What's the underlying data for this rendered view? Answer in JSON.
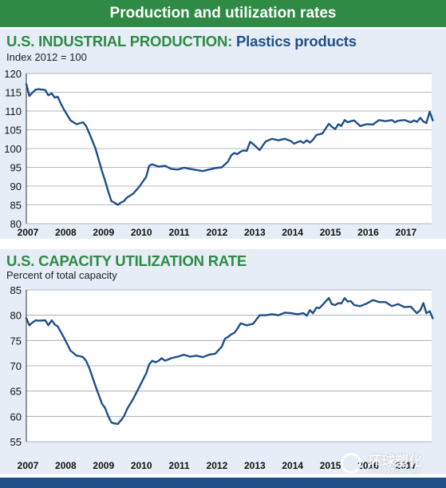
{
  "banner": {
    "title": "Production and utilization rates"
  },
  "charts": {
    "production": {
      "title_lead": "U.S. INDUSTRIAL PRODUCTION:",
      "title_tail": "Plastics products",
      "subtitle": "Index 2012 = 100"
    },
    "utilization": {
      "title": "U.S. CAPACITY UTILIZATION RATE",
      "subtitle": "Percent of total capacity"
    }
  },
  "watermark": {
    "name": "环球塑化",
    "url": "PVC123.COM"
  },
  "colors": {
    "banner": "#2e8a45",
    "title_blue": "#1f4f88",
    "line": "#1f4f88",
    "panel": "#e6edf6"
  },
  "chart_data": [
    {
      "type": "line",
      "title": "U.S. INDUSTRIAL PRODUCTION: Plastics products",
      "ylabel": "Index 2012 = 100",
      "ylim": [
        80,
        120
      ],
      "yticks": [
        80,
        85,
        90,
        95,
        100,
        105,
        110,
        115,
        120
      ],
      "xticks": [
        "2007",
        "2008",
        "2009",
        "2010",
        "2011",
        "2012",
        "2013",
        "2014",
        "2015",
        "2016",
        "2017"
      ],
      "grid": true,
      "series": [
        {
          "x": [
            2007.0,
            2007.08,
            2007.17,
            2007.25,
            2007.33,
            2007.5,
            2007.58,
            2007.67,
            2007.75,
            2007.83,
            2007.92,
            2008.0,
            2008.17,
            2008.33,
            2008.5,
            2008.58,
            2008.67,
            2008.83,
            2009.0,
            2009.08,
            2009.17,
            2009.25,
            2009.33,
            2009.42,
            2009.5,
            2009.58,
            2009.67,
            2009.83,
            2010.0,
            2010.17,
            2010.25,
            2010.33,
            2010.5,
            2010.67,
            2010.83,
            2011.0,
            2011.17,
            2011.33,
            2011.5,
            2011.67,
            2011.83,
            2012.0,
            2012.17,
            2012.33,
            2012.42,
            2012.5,
            2012.58,
            2012.67,
            2012.75,
            2012.83,
            2012.92,
            2013.0,
            2013.17,
            2013.33,
            2013.5,
            2013.67,
            2013.83,
            2014.0,
            2014.08,
            2014.17,
            2014.25,
            2014.33,
            2014.42,
            2014.5,
            2014.58,
            2014.67,
            2014.83,
            2015.0,
            2015.08,
            2015.17,
            2015.25,
            2015.33,
            2015.42,
            2015.5,
            2015.58,
            2015.67,
            2015.83,
            2016.0,
            2016.17,
            2016.33,
            2016.5,
            2016.67,
            2016.75,
            2016.83,
            2017.0,
            2017.17,
            2017.25,
            2017.33,
            2017.42,
            2017.5,
            2017.58,
            2017.67,
            2017.75
          ],
          "y": [
            117.2,
            114.0,
            115.0,
            115.7,
            115.8,
            115.6,
            114.2,
            114.7,
            113.6,
            113.8,
            111.8,
            110.3,
            107.5,
            106.5,
            107.0,
            106.0,
            104.0,
            100.0,
            94.0,
            91.5,
            88.5,
            86.0,
            85.6,
            85.0,
            85.6,
            86.0,
            87.0,
            88.0,
            90.0,
            92.5,
            95.4,
            95.8,
            95.2,
            95.4,
            94.6,
            94.4,
            94.9,
            94.6,
            94.3,
            94.0,
            94.4,
            94.8,
            95.0,
            96.5,
            98.2,
            98.8,
            98.5,
            99.2,
            99.5,
            99.4,
            101.8,
            101.2,
            99.6,
            101.9,
            102.6,
            102.2,
            102.6,
            102.0,
            101.3,
            101.7,
            102.0,
            101.5,
            102.2,
            101.6,
            102.3,
            103.6,
            104.0,
            106.6,
            105.8,
            105.2,
            106.5,
            106.0,
            107.6,
            107.0,
            107.3,
            107.5,
            106.0,
            106.5,
            106.4,
            107.6,
            107.3,
            107.6,
            107.0,
            107.4,
            107.6,
            107.0,
            107.5,
            107.1,
            108.2,
            107.2,
            106.8,
            109.8,
            107.5
          ]
        }
      ]
    },
    {
      "type": "line",
      "title": "U.S. CAPACITY UTILIZATION RATE",
      "ylabel": "Percent of total capacity",
      "ylim": [
        55,
        85
      ],
      "yticks": [
        55,
        60,
        65,
        70,
        75,
        80,
        85
      ],
      "xticks": [
        "2007",
        "2008",
        "2009",
        "2010",
        "2011",
        "2012",
        "2013",
        "2014",
        "2015",
        "2016",
        "2017"
      ],
      "grid": true,
      "series": [
        {
          "x": [
            2007.0,
            2007.08,
            2007.17,
            2007.25,
            2007.33,
            2007.5,
            2007.58,
            2007.67,
            2007.75,
            2007.83,
            2008.0,
            2008.17,
            2008.33,
            2008.42,
            2008.5,
            2008.58,
            2008.67,
            2008.83,
            2009.0,
            2009.08,
            2009.17,
            2009.25,
            2009.33,
            2009.42,
            2009.5,
            2009.58,
            2009.67,
            2009.83,
            2010.0,
            2010.17,
            2010.25,
            2010.33,
            2010.42,
            2010.5,
            2010.58,
            2010.67,
            2010.83,
            2011.0,
            2011.17,
            2011.33,
            2011.5,
            2011.67,
            2011.83,
            2012.0,
            2012.17,
            2012.25,
            2012.33,
            2012.42,
            2012.5,
            2012.58,
            2012.67,
            2012.83,
            2013.0,
            2013.17,
            2013.33,
            2013.5,
            2013.67,
            2013.83,
            2014.0,
            2014.17,
            2014.33,
            2014.42,
            2014.5,
            2014.58,
            2014.67,
            2014.75,
            2014.83,
            2015.0,
            2015.08,
            2015.17,
            2015.25,
            2015.33,
            2015.42,
            2015.5,
            2015.58,
            2015.67,
            2015.83,
            2016.0,
            2016.17,
            2016.33,
            2016.5,
            2016.67,
            2016.83,
            2017.0,
            2017.17,
            2017.33,
            2017.42,
            2017.5,
            2017.58,
            2017.67,
            2017.75
          ],
          "y": [
            79.4,
            78.0,
            78.6,
            79.0,
            78.9,
            79.0,
            78.0,
            79.0,
            78.2,
            77.8,
            75.5,
            73.0,
            72.0,
            71.9,
            71.7,
            71.0,
            69.5,
            66.0,
            62.5,
            61.7,
            60.0,
            58.8,
            58.6,
            58.5,
            59.2,
            60.0,
            61.5,
            63.5,
            66.0,
            68.5,
            70.3,
            71.0,
            70.7,
            71.0,
            71.5,
            71.0,
            71.5,
            71.8,
            72.2,
            71.8,
            72.0,
            71.7,
            72.2,
            72.4,
            73.8,
            75.3,
            75.7,
            76.2,
            76.5,
            77.3,
            78.4,
            78.0,
            78.3,
            80.0,
            80.0,
            80.2,
            80.0,
            80.5,
            80.4,
            80.2,
            80.4,
            79.9,
            81.0,
            80.4,
            81.5,
            81.4,
            82.0,
            83.4,
            82.2,
            82.0,
            82.4,
            82.3,
            83.4,
            82.7,
            82.8,
            82.0,
            81.8,
            82.3,
            83.0,
            82.6,
            82.6,
            81.8,
            82.2,
            81.6,
            81.7,
            80.4,
            81.0,
            82.4,
            80.4,
            80.8,
            79.4
          ]
        }
      ]
    }
  ]
}
